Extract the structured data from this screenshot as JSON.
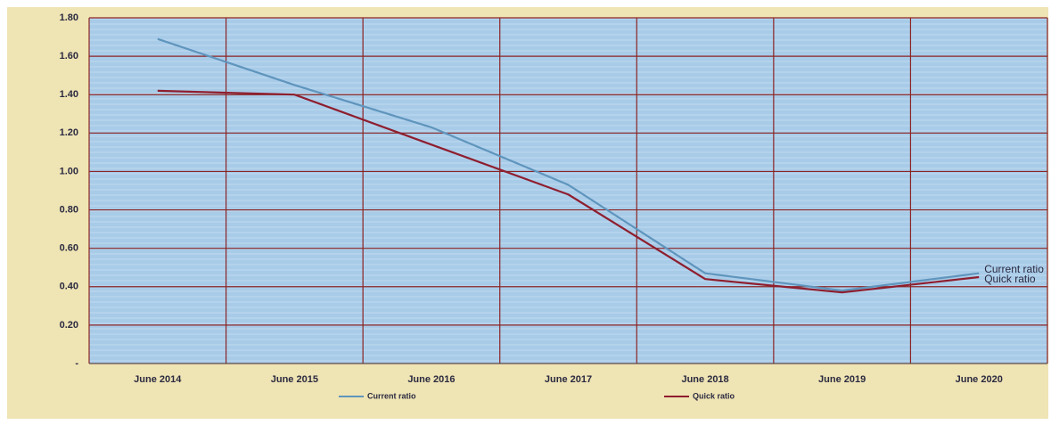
{
  "chart_data": {
    "type": "line",
    "categories": [
      "June 2014",
      "June 2015",
      "June 2016",
      "June 2017",
      "June 2018",
      "June 2019",
      "June 2020"
    ],
    "series": [
      {
        "name": "Current ratio",
        "color": "#5f95bd",
        "values": [
          1.69,
          1.45,
          1.23,
          0.93,
          0.47,
          0.38,
          0.47
        ]
      },
      {
        "name": "Quick ratio",
        "color": "#8e1e2e",
        "values": [
          1.42,
          1.4,
          1.14,
          0.88,
          0.44,
          0.37,
          0.45
        ]
      }
    ],
    "ylim": [
      0,
      1.8
    ],
    "yticks": [
      {
        "value": 0,
        "label": "-"
      },
      {
        "value": 0.2,
        "label": "0.20"
      },
      {
        "value": 0.4,
        "label": "0.40"
      },
      {
        "value": 0.6,
        "label": "0.60"
      },
      {
        "value": 0.8,
        "label": "0.80"
      },
      {
        "value": 1.0,
        "label": "1.00"
      },
      {
        "value": 1.2,
        "label": "1.20"
      },
      {
        "value": 1.4,
        "label": "1.40"
      },
      {
        "value": 1.6,
        "label": "1.60"
      },
      {
        "value": 1.8,
        "label": "1.80"
      }
    ],
    "grid": true,
    "legend": "bottom",
    "grid_color": "#8b2424"
  }
}
